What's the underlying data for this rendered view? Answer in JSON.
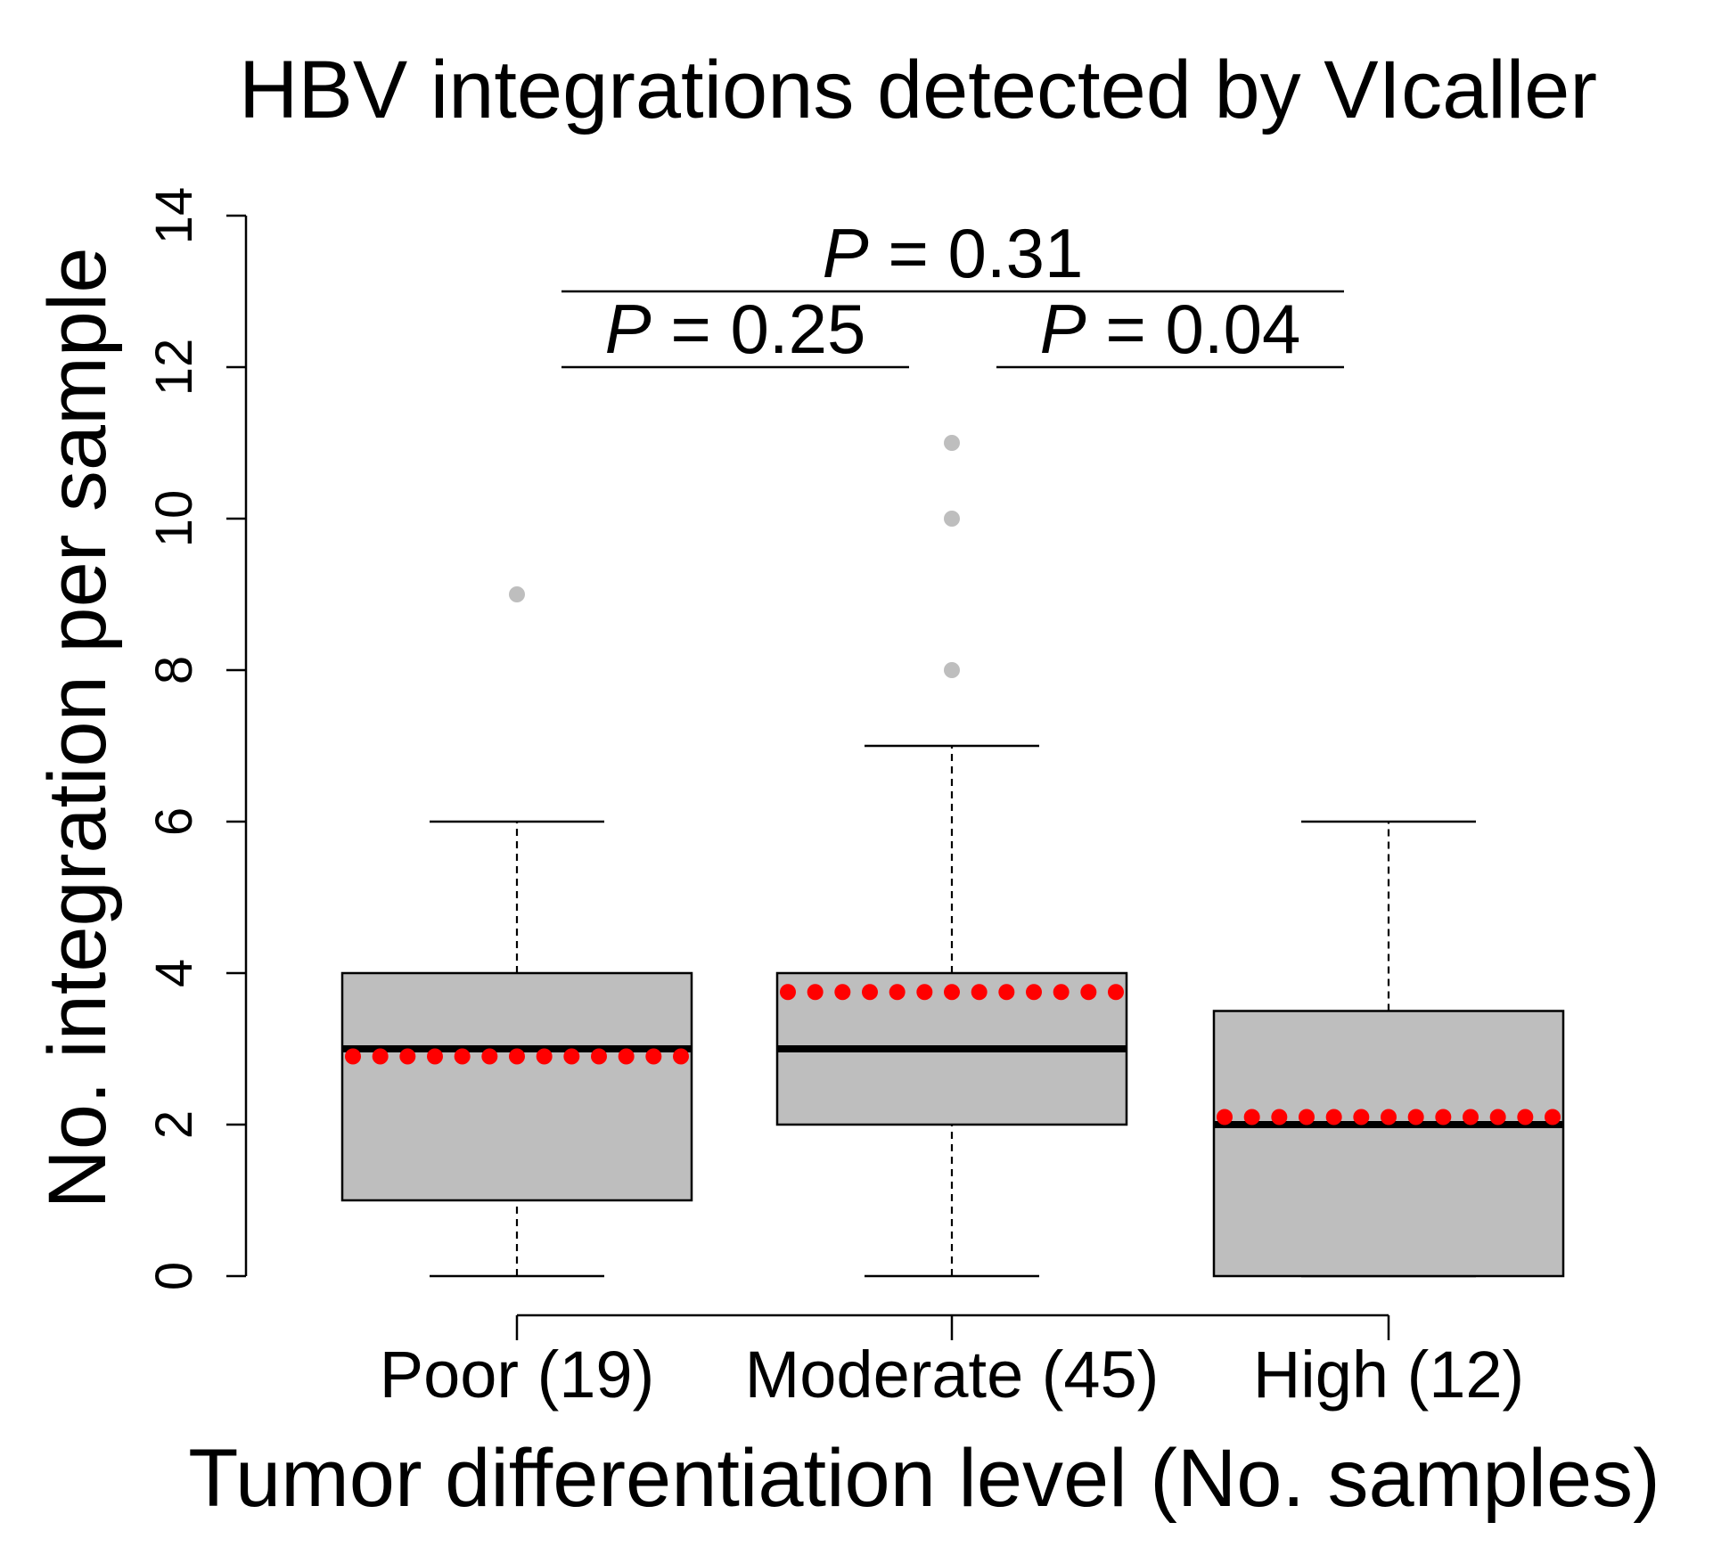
{
  "chart_data": {
    "type": "box",
    "title": "HBV integrations detected by VIcaller",
    "xlabel": "Tumor differentiation level (No. samples)",
    "ylabel": "No. integration per sample",
    "ylim": [
      0,
      14
    ],
    "yticks": [
      0,
      2,
      4,
      6,
      8,
      10,
      12,
      14
    ],
    "categories": [
      "Poor (19)",
      "Moderate (45)",
      "High (12)"
    ],
    "boxes": [
      {
        "name": "Poor (19)",
        "whisker_low": 0,
        "q1": 1,
        "median": 3,
        "q3": 4,
        "whisker_high": 6,
        "mean": 2.9,
        "outliers": [
          9
        ]
      },
      {
        "name": "Moderate (45)",
        "whisker_low": 0,
        "q1": 2,
        "median": 3,
        "q3": 4,
        "whisker_high": 7,
        "mean": 3.75,
        "outliers": [
          8,
          10,
          11
        ]
      },
      {
        "name": "High (12)",
        "whisker_low": 0,
        "q1": 0,
        "median": 2,
        "q3": 3.5,
        "whisker_high": 6,
        "mean": 2.1,
        "outliers": []
      }
    ],
    "comparisons": [
      {
        "from": 0,
        "to": 2,
        "y": 13,
        "label_prefix": "P",
        "label_rest": " = 0.31"
      },
      {
        "from": 0,
        "to": 1,
        "y": 12,
        "label_prefix": "P",
        "label_rest": " = 0.25"
      },
      {
        "from": 1,
        "to": 2,
        "y": 12,
        "label_prefix": "P",
        "label_rest": " = 0.04"
      }
    ],
    "colors": {
      "box_fill": "#bebebe",
      "outlier": "#bebebe",
      "mean_dots": "#ff0000",
      "lines": "#000000"
    }
  }
}
